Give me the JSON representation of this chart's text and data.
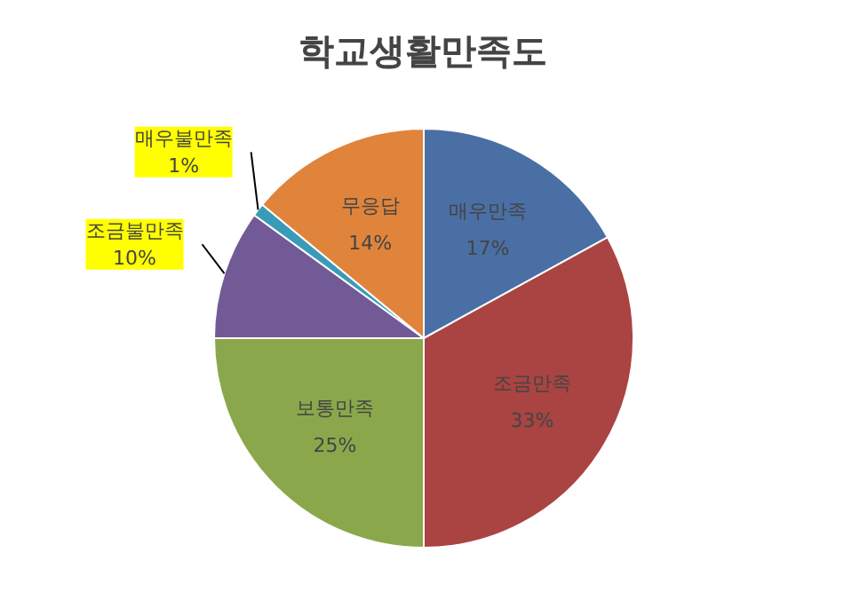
{
  "chart_data": {
    "type": "pie",
    "title": "학교생활만족도",
    "categories": [
      "매우만족",
      "조금만족",
      "보통만족",
      "조금불만족",
      "매우불만족",
      "무응답"
    ],
    "values": [
      17,
      33,
      25,
      10,
      1,
      14
    ],
    "value_labels": [
      "17%",
      "33%",
      "25%",
      "10%",
      "1%",
      "14%"
    ],
    "colors": [
      "#4a6fa5",
      "#a94442",
      "#8aa84b",
      "#725a96",
      "#3a9bb8",
      "#e0843c"
    ]
  }
}
